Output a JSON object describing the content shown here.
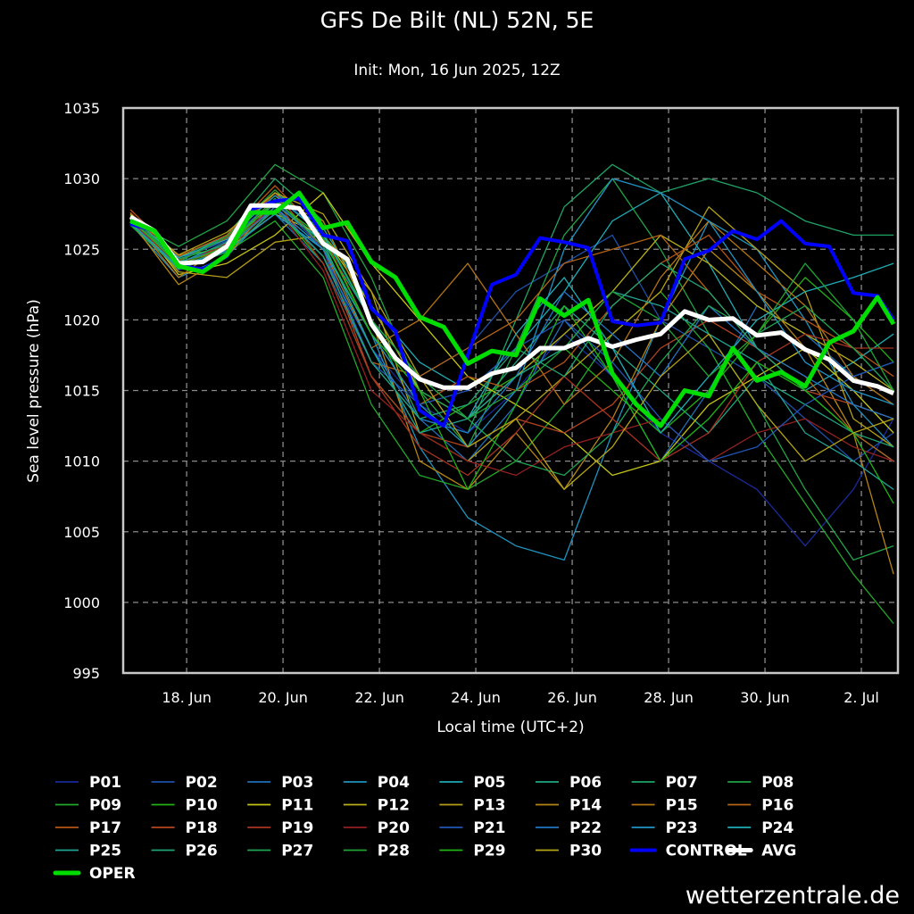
{
  "chart_data": {
    "type": "line",
    "title": "GFS De Bilt (NL) 52N, 5E",
    "subtitle": "Init: Mon, 16 Jun 2025, 12Z",
    "xlabel": "Local time (UTC+2)",
    "ylabel": "Sea level pressure (hPa)",
    "x_unit": "hours since 16 Jun 2025 00:00 local",
    "xlim": [
      16.4,
      402.2
    ],
    "ylim": [
      995,
      1035
    ],
    "grid": true,
    "legend_position": "bottom",
    "yticks": [
      995,
      1000,
      1005,
      1010,
      1015,
      1020,
      1025,
      1030,
      1035
    ],
    "xticks": [
      {
        "hour": 48,
        "label": "18. Jun"
      },
      {
        "hour": 96,
        "label": "20. Jun"
      },
      {
        "hour": 144,
        "label": "22. Jun"
      },
      {
        "hour": 192,
        "label": "24. Jun"
      },
      {
        "hour": 240,
        "label": "26. Jun"
      },
      {
        "hour": 288,
        "label": "28. Jun"
      },
      {
        "hour": 336,
        "label": "30. Jun"
      },
      {
        "hour": 384,
        "label": "2. Jul"
      }
    ],
    "main_hours": [
      20,
      32,
      44,
      56,
      68,
      80,
      92,
      104,
      116,
      128,
      140,
      152,
      164,
      176,
      188,
      200,
      212,
      224,
      236,
      248,
      260,
      272,
      284,
      296,
      308,
      320,
      332,
      344,
      356,
      368,
      380,
      392,
      400
    ],
    "member_hours": [
      20,
      44,
      68,
      92,
      116,
      140,
      164,
      188,
      212,
      236,
      260,
      284,
      308,
      332,
      356,
      380,
      400
    ],
    "series": [
      {
        "name": "P01",
        "color": "#1a2a9a",
        "values": [
          1027.5,
          1023.5,
          1025,
          1028.5,
          1025,
          1018,
          1014,
          1012,
          1015,
          1019,
          1016,
          1012,
          1010,
          1008,
          1004,
          1008,
          1013
        ]
      },
      {
        "name": "P02",
        "color": "#1f4fa8",
        "values": [
          1027,
          1024,
          1025.5,
          1029,
          1026,
          1020,
          1016,
          1018,
          1022,
          1024,
          1026,
          1020,
          1018,
          1016,
          1013,
          1010,
          1012
        ]
      },
      {
        "name": "P03",
        "color": "#1f6fb4",
        "values": [
          1027.3,
          1024.5,
          1025,
          1027.5,
          1024,
          1017,
          1013,
          1010,
          1014,
          1020,
          1016,
          1010,
          1015,
          1021,
          1019,
          1016,
          1017
        ]
      },
      {
        "name": "P04",
        "color": "#1f92be",
        "values": [
          1026.8,
          1023,
          1024.5,
          1028,
          1025,
          1019,
          1011,
          1006,
          1004,
          1003,
          1012,
          1020,
          1027,
          1025,
          1020,
          1014,
          1011
        ]
      },
      {
        "name": "P05",
        "color": "#20aab4",
        "values": [
          1027.2,
          1024.2,
          1026,
          1029,
          1026.5,
          1021,
          1017,
          1015,
          1018,
          1022,
          1027,
          1029,
          1024,
          1018,
          1015,
          1017,
          1019
        ]
      },
      {
        "name": "P06",
        "color": "#20a684",
        "values": [
          1026.9,
          1023.8,
          1025,
          1028.5,
          1025.5,
          1020,
          1015,
          1013,
          1017,
          1021,
          1018,
          1015,
          1012,
          1016,
          1014,
          1012,
          1010
        ]
      },
      {
        "name": "P07",
        "color": "#20a466",
        "values": [
          1027.4,
          1024.4,
          1026,
          1030,
          1027,
          1020,
          1013,
          1012,
          1020,
          1028,
          1031,
          1029,
          1030,
          1029,
          1027,
          1026,
          1026
        ]
      },
      {
        "name": "P08",
        "color": "#22a446",
        "values": [
          1027,
          1025.2,
          1027,
          1031,
          1029,
          1023,
          1015,
          1011,
          1018,
          1026,
          1030,
          1025,
          1019,
          1014,
          1008,
          1003,
          1004
        ]
      },
      {
        "name": "P09",
        "color": "#22a82a",
        "values": [
          1026.7,
          1023.6,
          1024.8,
          1027,
          1023,
          1014,
          1009,
          1008,
          1010,
          1014,
          1019,
          1022,
          1018,
          1012,
          1007,
          1002,
          998.5
        ]
      },
      {
        "name": "P10",
        "color": "#22b014",
        "values": [
          1027.1,
          1024,
          1025.2,
          1028,
          1024,
          1016,
          1012,
          1014,
          1016,
          1018,
          1015,
          1012,
          1015,
          1019,
          1023,
          1020,
          1017
        ]
      },
      {
        "name": "P11",
        "color": "#c4c414",
        "values": [
          1027.6,
          1023.2,
          1024,
          1026,
          1029,
          1024,
          1020,
          1016,
          1014,
          1012,
          1009,
          1010,
          1014,
          1016,
          1018,
          1015,
          1012
        ]
      },
      {
        "name": "P12",
        "color": "#b8b014",
        "values": [
          1027.2,
          1024.6,
          1025,
          1027.5,
          1026,
          1021,
          1015,
          1013,
          1016,
          1019,
          1022,
          1026,
          1024,
          1021,
          1019,
          1017,
          1015
        ]
      },
      {
        "name": "P13",
        "color": "#b4a014",
        "values": [
          1027.4,
          1023.4,
          1023,
          1025.5,
          1026,
          1022,
          1012,
          1010,
          1013,
          1016,
          1019,
          1022,
          1028,
          1025,
          1022,
          1013,
          1011
        ]
      },
      {
        "name": "P14",
        "color": "#b48414",
        "values": [
          1027,
          1022.5,
          1024.5,
          1028.5,
          1027,
          1020,
          1010,
          1008,
          1012,
          1008,
          1013,
          1020,
          1025,
          1022,
          1018,
          1012,
          1002
        ]
      },
      {
        "name": "P15",
        "color": "#b47414",
        "values": [
          1027.2,
          1023,
          1025.5,
          1029,
          1025,
          1018,
          1020,
          1024,
          1019,
          1014,
          1017,
          1023,
          1027,
          1024,
          1021,
          1016,
          1014
        ]
      },
      {
        "name": "P16",
        "color": "#b46414",
        "values": [
          1027.5,
          1024,
          1025,
          1028,
          1024.5,
          1017,
          1016,
          1018,
          1020,
          1024,
          1025,
          1026,
          1022,
          1018,
          1016,
          1012,
          1010
        ]
      },
      {
        "name": "P17",
        "color": "#b45414",
        "values": [
          1027.8,
          1024.5,
          1026,
          1029.5,
          1026,
          1019,
          1014,
          1016,
          1015,
          1017,
          1021,
          1024,
          1026,
          1022,
          1020,
          1018,
          1016
        ]
      },
      {
        "name": "P18",
        "color": "#b44420",
        "values": [
          1027.6,
          1024.2,
          1025.8,
          1029,
          1025,
          1016,
          1012,
          1011,
          1013,
          1012,
          1014,
          1018,
          1020,
          1018,
          1015,
          1014,
          1013
        ]
      },
      {
        "name": "P19",
        "color": "#a83420",
        "values": [
          1027.3,
          1023.8,
          1025.3,
          1028.5,
          1024,
          1016,
          1011,
          1009,
          1012,
          1016,
          1013,
          1010,
          1012,
          1017,
          1019,
          1018,
          1018
        ]
      },
      {
        "name": "P20",
        "color": "#942020",
        "values": [
          1027,
          1023.9,
          1025.4,
          1028,
          1023.5,
          1015,
          1012,
          1010,
          1009,
          1011,
          1012,
          1013,
          1010,
          1012,
          1013,
          1011,
          1010
        ]
      },
      {
        "name": "P21",
        "color": "#2054b4",
        "values": [
          1027.2,
          1024.3,
          1025.6,
          1028.5,
          1025,
          1017,
          1014,
          1015,
          1018,
          1020,
          1017,
          1013,
          1010,
          1011,
          1014,
          1016,
          1017
        ]
      },
      {
        "name": "P22",
        "color": "#2074c4",
        "values": [
          1027.1,
          1024.1,
          1025.1,
          1028,
          1024.5,
          1018,
          1013,
          1012,
          1016,
          1022,
          1019,
          1016,
          1021,
          1018,
          1016,
          1014,
          1013
        ]
      },
      {
        "name": "P23",
        "color": "#2094c4",
        "values": [
          1026.9,
          1023.7,
          1024.9,
          1027.5,
          1025,
          1019,
          1014,
          1011,
          1015,
          1025,
          1030,
          1029,
          1027,
          1022,
          1017,
          1015,
          1014
        ]
      },
      {
        "name": "P24",
        "color": "#20acb4",
        "values": [
          1027.3,
          1024.4,
          1025.7,
          1028.8,
          1026,
          1020,
          1016,
          1013,
          1019,
          1023,
          1018,
          1012,
          1016,
          1020,
          1022,
          1023,
          1024
        ]
      },
      {
        "name": "P25",
        "color": "#20a494",
        "values": [
          1027.1,
          1024,
          1025.5,
          1028.2,
          1025.5,
          1018,
          1012,
          1013,
          1016,
          1018,
          1022,
          1021,
          1019,
          1017,
          1012,
          1010,
          1008
        ]
      },
      {
        "name": "P26",
        "color": "#20a474",
        "values": [
          1026.8,
          1023.6,
          1024.8,
          1027.8,
          1024.5,
          1017,
          1013,
          1014,
          1018,
          1016,
          1021,
          1024,
          1022,
          1018,
          1015,
          1012,
          1011
        ]
      },
      {
        "name": "P27",
        "color": "#20a454",
        "values": [
          1027,
          1024.3,
          1025.3,
          1028.6,
          1025.2,
          1019,
          1015,
          1013,
          1010,
          1009,
          1012,
          1017,
          1021,
          1019,
          1021,
          1018,
          1015
        ]
      },
      {
        "name": "P28",
        "color": "#20a434",
        "values": [
          1027.4,
          1024.1,
          1025.9,
          1029.2,
          1026.2,
          1020,
          1016,
          1013,
          1015,
          1018,
          1022,
          1020,
          1016,
          1019,
          1024,
          1020,
          1015
        ]
      },
      {
        "name": "P29",
        "color": "#20b414",
        "values": [
          1027.2,
          1023.9,
          1025.2,
          1028.4,
          1025.8,
          1019,
          1015,
          1008,
          1014,
          1021,
          1016,
          1010,
          1013,
          1017,
          1015,
          1012,
          1007
        ]
      },
      {
        "name": "P30",
        "color": "#b4a414",
        "values": [
          1027.5,
          1024.6,
          1026.2,
          1029,
          1027.5,
          1022,
          1016,
          1011,
          1013,
          1008,
          1011,
          1016,
          1019,
          1014,
          1010,
          1012,
          1013
        ]
      },
      {
        "name": "CONTROL",
        "color": "#0000ff",
        "main": true,
        "values": [
          1026.8,
          1026.3,
          1023.8,
          1023.6,
          1024.5,
          1027.8,
          1028.4,
          1028.6,
          1026.0,
          1025.6,
          1020.8,
          1019.2,
          1013.6,
          1012.5,
          1017.5,
          1022.5,
          1023.2,
          1025.8,
          1025.5,
          1025.1,
          1019.9,
          1019.6,
          1019.8,
          1024.3,
          1024.9,
          1026.3,
          1025.7,
          1027.0,
          1025.4,
          1025.2,
          1021.9,
          1021.7,
          1020.0
        ]
      },
      {
        "name": "AVG",
        "color": "#ffffff",
        "main": true,
        "values": [
          1027.3,
          1026.3,
          1024.0,
          1024.1,
          1025.2,
          1028.1,
          1028.1,
          1027.9,
          1025.4,
          1024.3,
          1019.7,
          1017.3,
          1015.8,
          1015.2,
          1015.2,
          1016.2,
          1016.6,
          1018.0,
          1018.0,
          1018.7,
          1018.1,
          1018.6,
          1019.0,
          1020.6,
          1020.0,
          1020.1,
          1018.9,
          1019.1,
          1017.9,
          1017.2,
          1015.7,
          1015.3,
          1014.8
        ]
      },
      {
        "name": "OPER",
        "color": "#00dd00",
        "main": true,
        "values": [
          1027.0,
          1026.3,
          1023.8,
          1023.4,
          1024.6,
          1027.6,
          1027.6,
          1029.0,
          1026.5,
          1026.9,
          1024.1,
          1023.0,
          1020.2,
          1019.5,
          1016.9,
          1017.8,
          1017.5,
          1021.5,
          1020.3,
          1021.4,
          1016.2,
          1014.0,
          1012.5,
          1015.0,
          1014.6,
          1018.0,
          1015.7,
          1016.3,
          1015.3,
          1018.4,
          1019.2,
          1021.6,
          1019.7
        ]
      }
    ]
  },
  "watermark": "wetterzentrale.de"
}
